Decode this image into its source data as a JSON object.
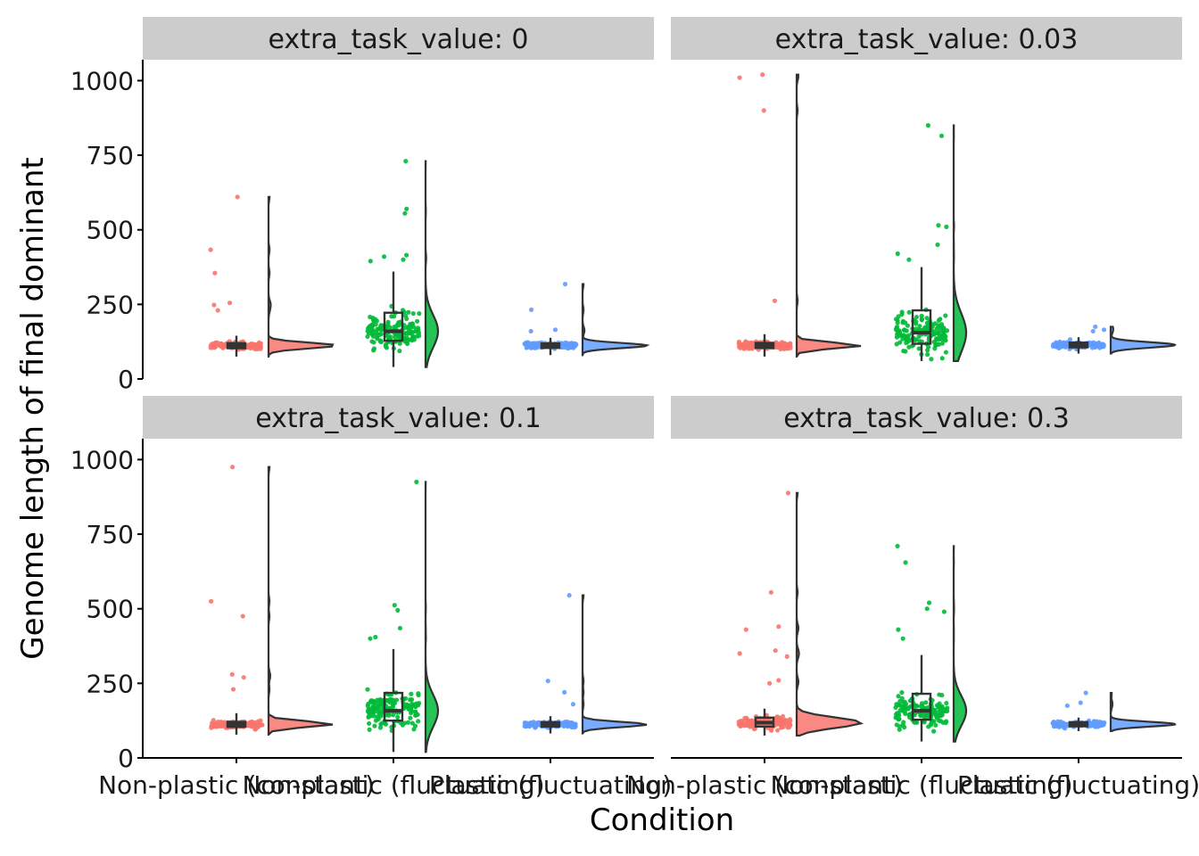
{
  "chart_data": {
    "type": "raincloud",
    "ylabel": "Genome length of final dominant",
    "xlabel": "Condition",
    "categories": [
      "Non-plastic (constant)",
      "Non-plastic (fluctuating)",
      "Plastic (fluctuating)"
    ],
    "colors": [
      "#F8766D",
      "#00BA38",
      "#619CFF"
    ],
    "ylim": [
      0,
      1070
    ],
    "yticks": [
      0,
      250,
      500,
      750,
      1000
    ],
    "grid": false,
    "legend": "none",
    "facets": [
      {
        "label": "extra_task_value: 0",
        "series": [
          {
            "name": "Non-plastic (constant)",
            "median": 112,
            "q1": 103,
            "q3": 120,
            "min": 75,
            "max": 145,
            "outliers": [
              433,
              610,
              355,
              255,
              248,
              230
            ]
          },
          {
            "name": "Non-plastic (fluctuating)",
            "median": 160,
            "q1": 128,
            "q3": 222,
            "min": 40,
            "max": 360,
            "outliers": [
              730,
              570,
              555,
              415,
              410,
              400,
              395
            ]
          },
          {
            "name": "Plastic (fluctuating)",
            "median": 112,
            "q1": 104,
            "q3": 119,
            "min": 80,
            "max": 138,
            "outliers": [
              318,
              232,
              165,
              160
            ]
          }
        ]
      },
      {
        "label": "extra_task_value: 0.03",
        "series": [
          {
            "name": "Non-plastic (constant)",
            "median": 112,
            "q1": 104,
            "q3": 121,
            "min": 75,
            "max": 150,
            "outliers": [
              1020,
              1010,
              900,
              262
            ]
          },
          {
            "name": "Non-plastic (fluctuating)",
            "median": 155,
            "q1": 118,
            "q3": 230,
            "min": 60,
            "max": 375,
            "outliers": [
              850,
              815,
              515,
              510,
              450,
              420,
              400
            ]
          },
          {
            "name": "Plastic (fluctuating)",
            "median": 114,
            "q1": 106,
            "q3": 122,
            "min": 85,
            "max": 140,
            "outliers": [
              175,
              165,
              160
            ]
          }
        ]
      },
      {
        "label": "extra_task_value: 0.1",
        "series": [
          {
            "name": "Non-plastic (constant)",
            "median": 113,
            "q1": 104,
            "q3": 121,
            "min": 78,
            "max": 150,
            "outliers": [
              975,
              525,
              475,
              280,
              270,
              230
            ]
          },
          {
            "name": "Non-plastic (fluctuating)",
            "median": 158,
            "q1": 125,
            "q3": 218,
            "min": 20,
            "max": 365,
            "outliers": [
              925,
              512,
              495,
              435,
              405,
              400
            ]
          },
          {
            "name": "Plastic (fluctuating)",
            "median": 112,
            "q1": 105,
            "q3": 120,
            "min": 82,
            "max": 140,
            "outliers": [
              545,
              258,
              220,
              180
            ]
          }
        ]
      },
      {
        "label": "extra_task_value: 0.3",
        "series": [
          {
            "name": "Non-plastic (constant)",
            "median": 118,
            "q1": 105,
            "q3": 135,
            "min": 75,
            "max": 165,
            "outliers": [
              888,
              555,
              440,
              430,
              360,
              350,
              340,
              260,
              250
            ]
          },
          {
            "name": "Non-plastic (fluctuating)",
            "median": 158,
            "q1": 128,
            "q3": 215,
            "min": 55,
            "max": 345,
            "outliers": [
              710,
              655,
              520,
              500,
              490,
              430,
              400
            ]
          },
          {
            "name": "Plastic (fluctuating)",
            "median": 113,
            "q1": 106,
            "q3": 120,
            "min": 90,
            "max": 135,
            "outliers": [
              218,
              185,
              175
            ]
          }
        ]
      }
    ]
  }
}
